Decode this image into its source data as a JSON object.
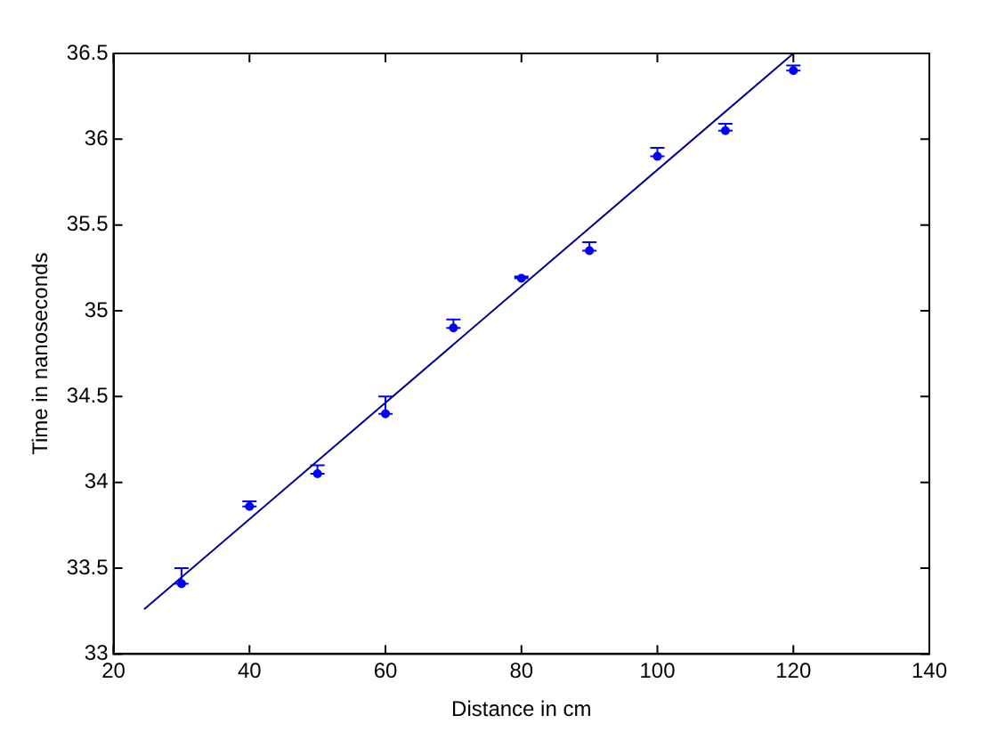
{
  "chart_data": {
    "type": "scatter",
    "xlabel": "Distance in cm",
    "ylabel": "Time in nanoseconds",
    "series": [
      {
        "type": "scatter",
        "color": "#0000ff",
        "marker": "circle",
        "x": [
          30,
          40,
          50,
          60,
          70,
          80,
          90,
          100,
          110,
          120
        ],
        "values": [
          33.41,
          33.86,
          34.05,
          34.4,
          34.9,
          35.19,
          35.35,
          35.9,
          36.05,
          36.4
        ],
        "errors": [
          [
            33.41,
            33.5
          ],
          [
            33.86,
            33.89
          ],
          [
            34.05,
            34.1
          ],
          [
            34.4,
            34.5
          ],
          [
            34.9,
            34.95
          ],
          [
            35.19,
            35.2
          ],
          [
            35.35,
            35.4
          ],
          [
            35.9,
            35.95
          ],
          [
            36.05,
            36.09
          ],
          [
            36.4,
            36.43
          ]
        ]
      },
      {
        "type": "line",
        "color": "#00008b",
        "marker": "none",
        "line_style": "solid",
        "x": [
          24.5,
          120
        ],
        "values": [
          33.26,
          36.5
        ]
      }
    ],
    "xlim": [
      20,
      140
    ],
    "xticks": [
      20,
      40,
      60,
      80,
      100,
      120,
      140
    ],
    "ylim": [
      33,
      36.5
    ],
    "yticks": [
      33,
      33.5,
      34,
      34.5,
      35,
      35.5,
      36,
      36.5
    ],
    "grid": false,
    "legend": false
  }
}
